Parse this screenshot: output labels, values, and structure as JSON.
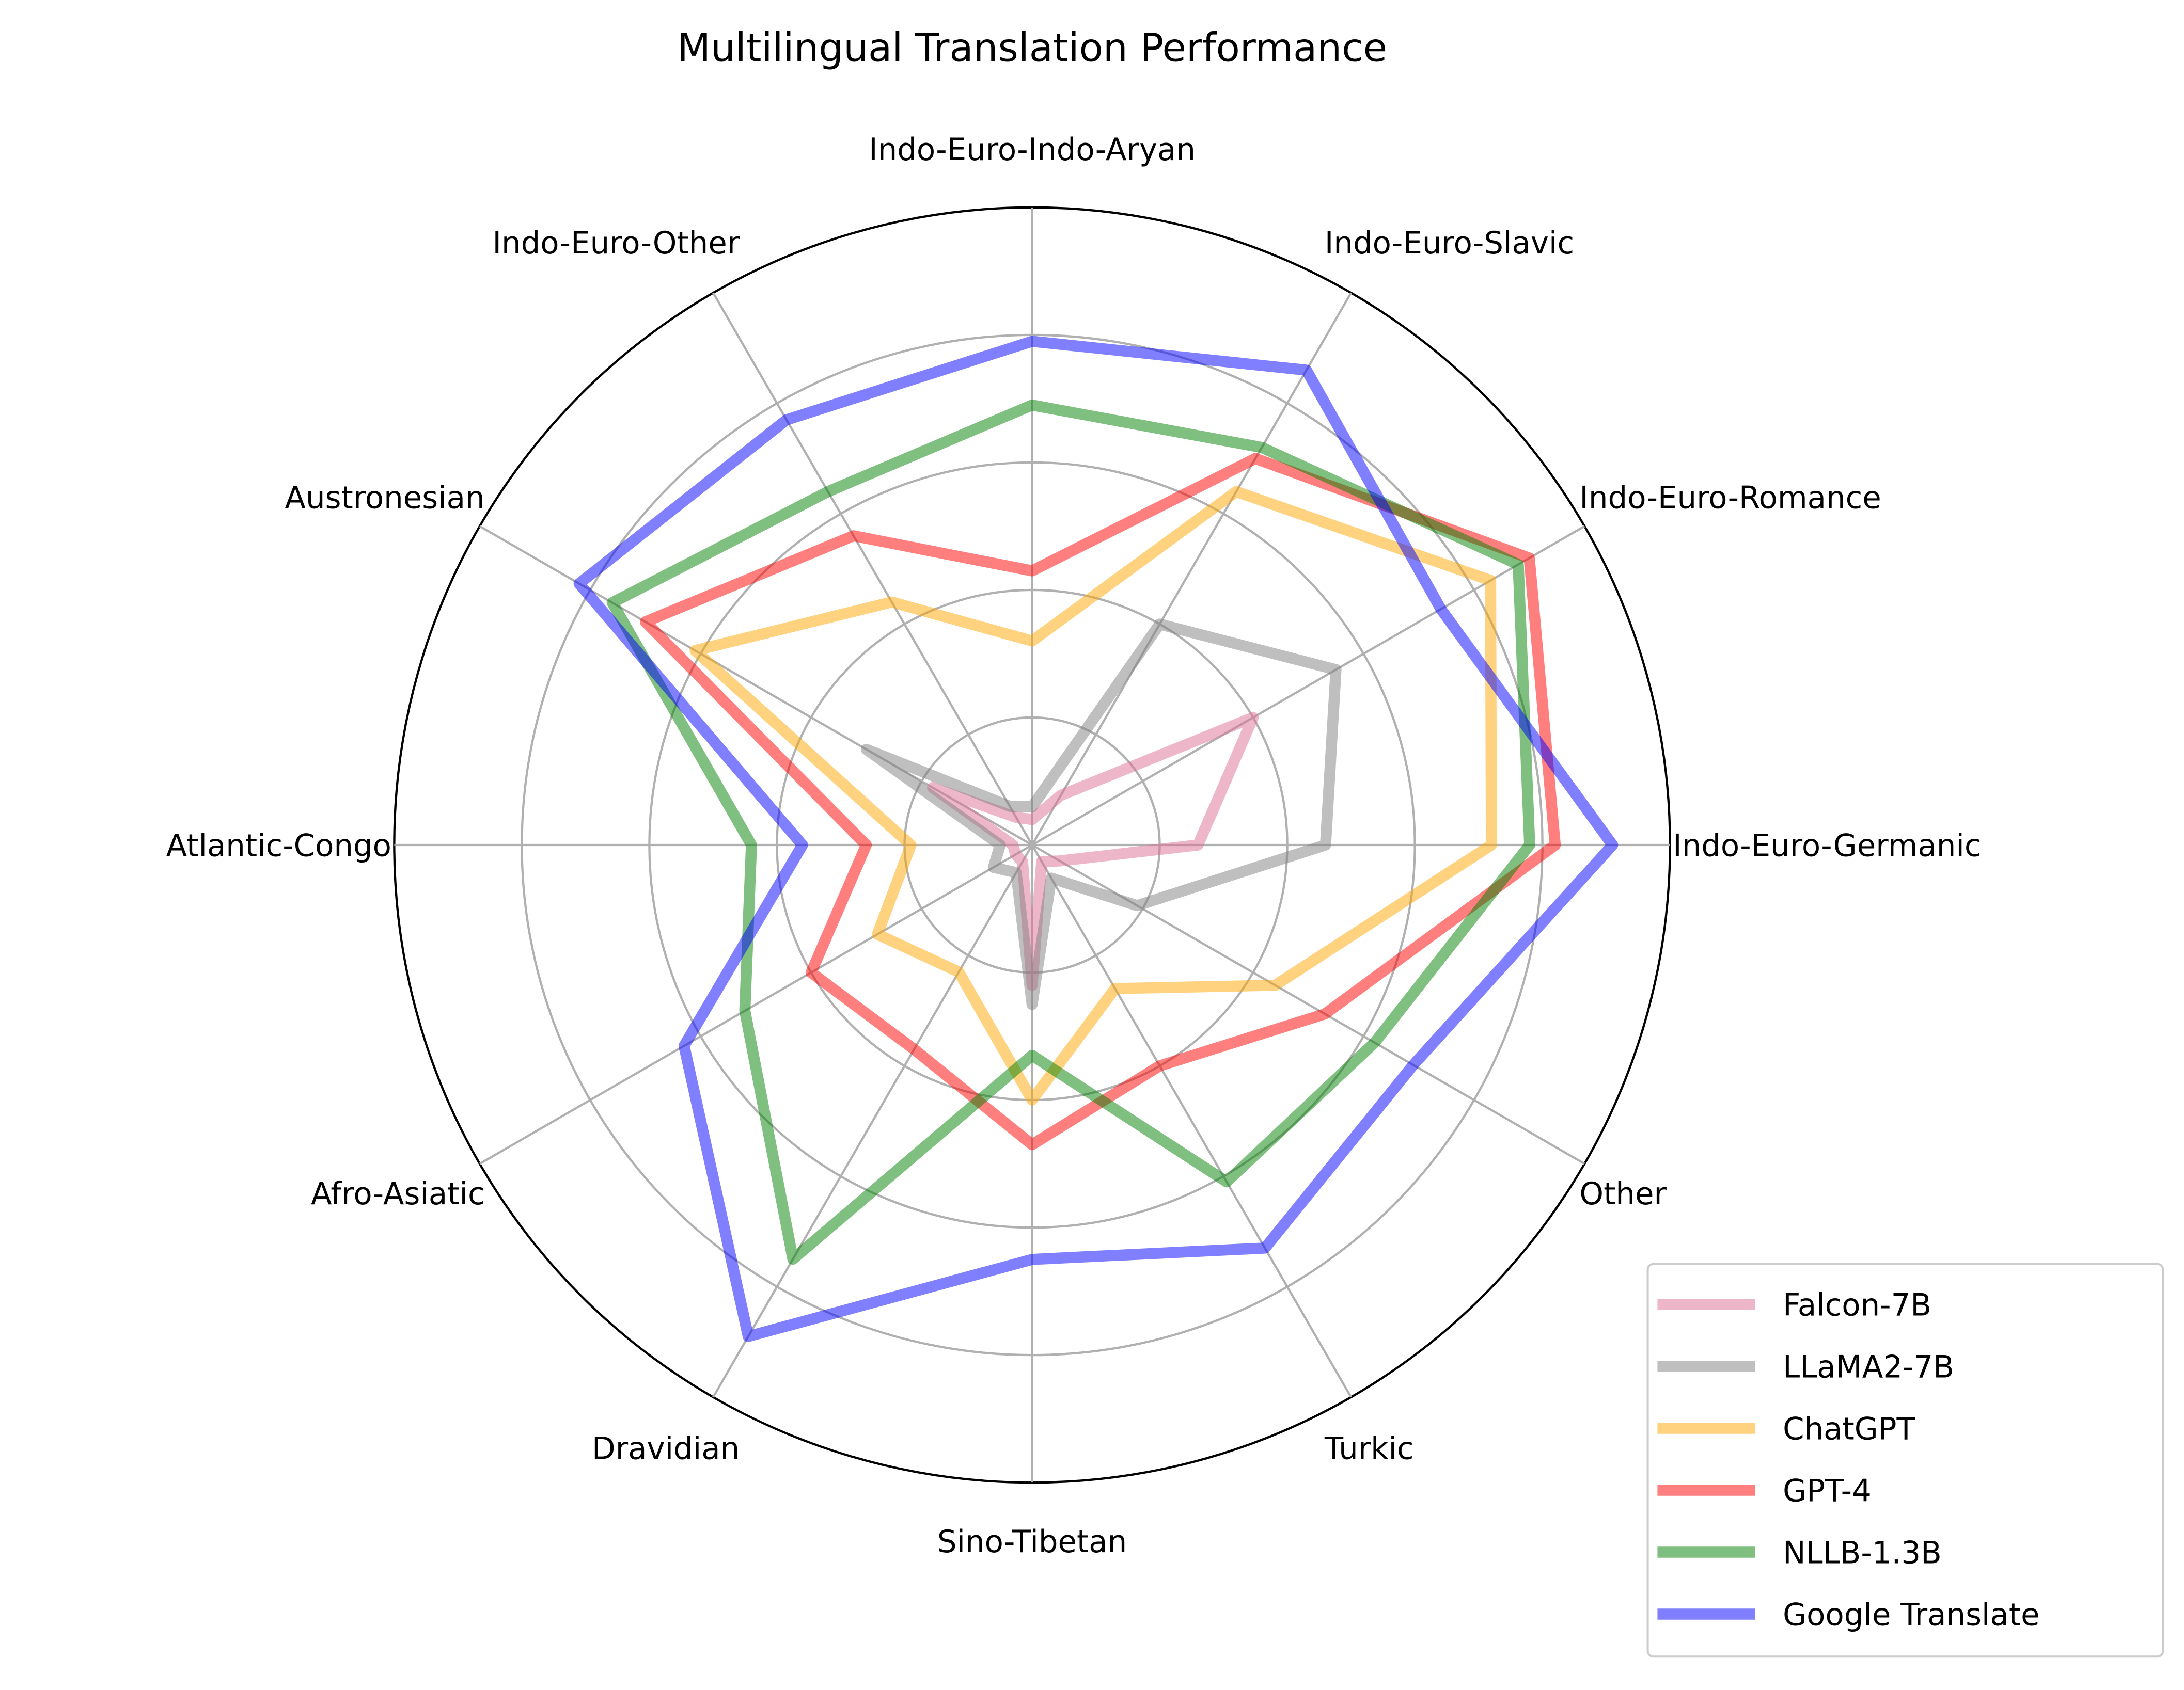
{
  "chart_data": {
    "type": "radar",
    "title": "Multilingual Translation Performance",
    "categories": [
      "Indo-Euro-Germanic",
      "Indo-Euro-Romance",
      "Indo-Euro-Slavic",
      "Indo-Euro-Indo-Aryan",
      "Indo-Euro-Other",
      "Austronesian",
      "Atlantic-Congo",
      "Afro-Asiatic",
      "Dravidian",
      "Sino-Tibetan",
      "Turkic",
      "Other"
    ],
    "rlim": [
      0,
      1.0
    ],
    "radial_gridlines": [
      0.2,
      0.4,
      0.6,
      0.8,
      1.0
    ],
    "radial_tick_labels_shown": false,
    "grid": true,
    "legend_position": "bottom-right",
    "series": [
      {
        "name": "Falcon-7B",
        "color": "#db7093",
        "values": [
          0.26,
          0.4,
          0.09,
          0.04,
          0.05,
          0.18,
          0.03,
          0.03,
          0.03,
          0.22,
          0.03,
          0.05
        ]
      },
      {
        "name": "LLaMA2-7B",
        "color": "#808080",
        "values": [
          0.46,
          0.55,
          0.4,
          0.06,
          0.07,
          0.3,
          0.05,
          0.07,
          0.05,
          0.25,
          0.06,
          0.19
        ]
      },
      {
        "name": "ChatGPT",
        "color": "#ffa500",
        "values": [
          0.72,
          0.83,
          0.64,
          0.32,
          0.44,
          0.61,
          0.19,
          0.28,
          0.23,
          0.4,
          0.26,
          0.44
        ]
      },
      {
        "name": "GPT-4",
        "color": "#ff0000",
        "values": [
          0.82,
          0.9,
          0.7,
          0.43,
          0.56,
          0.7,
          0.26,
          0.4,
          0.37,
          0.47,
          0.4,
          0.53
        ]
      },
      {
        "name": "NLLB-1.3B",
        "color": "#008000",
        "values": [
          0.78,
          0.88,
          0.72,
          0.69,
          0.64,
          0.76,
          0.44,
          0.52,
          0.75,
          0.33,
          0.61,
          0.62
        ]
      },
      {
        "name": "Google Translate",
        "color": "#0000ff",
        "values": [
          0.91,
          0.74,
          0.86,
          0.79,
          0.77,
          0.82,
          0.36,
          0.63,
          0.89,
          0.65,
          0.73,
          0.69
        ]
      }
    ]
  }
}
